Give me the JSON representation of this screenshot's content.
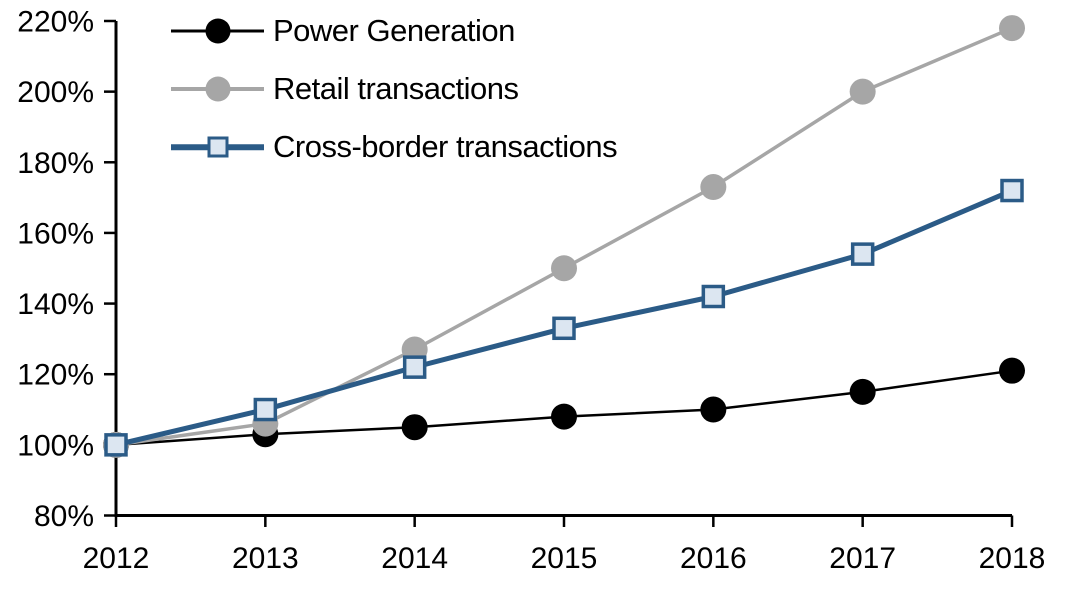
{
  "chart_data": {
    "type": "line",
    "title": "",
    "xlabel": "",
    "ylabel": "",
    "categories": [
      "2012",
      "2013",
      "2014",
      "2015",
      "2016",
      "2017",
      "2018"
    ],
    "series": [
      {
        "name": "Power Generation",
        "values": [
          100,
          103,
          105,
          108,
          110,
          115,
          121
        ],
        "color": "#000000",
        "marker": "circle",
        "marker_fill": "#000000",
        "line_width": 2.5
      },
      {
        "name": "Retail transactions",
        "values": [
          100,
          106,
          127,
          150,
          173,
          200,
          218
        ],
        "color": "#A6A6A6",
        "marker": "circle",
        "marker_fill": "#A6A6A6",
        "line_width": 3.5
      },
      {
        "name": "Cross-border transactions",
        "values": [
          100,
          110,
          122,
          133,
          142,
          154,
          172
        ],
        "color": "#2B5B87",
        "marker": "square",
        "marker_fill": "#DCE6F1",
        "line_width": 5
      }
    ],
    "ylim": [
      80,
      220
    ],
    "y_ticks": [
      {
        "v": 80,
        "label": "80%"
      },
      {
        "v": 100,
        "label": "100%"
      },
      {
        "v": 120,
        "label": "120%"
      },
      {
        "v": 140,
        "label": "140%"
      },
      {
        "v": 160,
        "label": "160%"
      },
      {
        "v": 180,
        "label": "180%"
      },
      {
        "v": 200,
        "label": "200%"
      },
      {
        "v": 220,
        "label": "220%"
      }
    ],
    "grid": false,
    "legend_position": "top-left",
    "axis_color": "#000000",
    "tick_label_color": "#000000"
  }
}
